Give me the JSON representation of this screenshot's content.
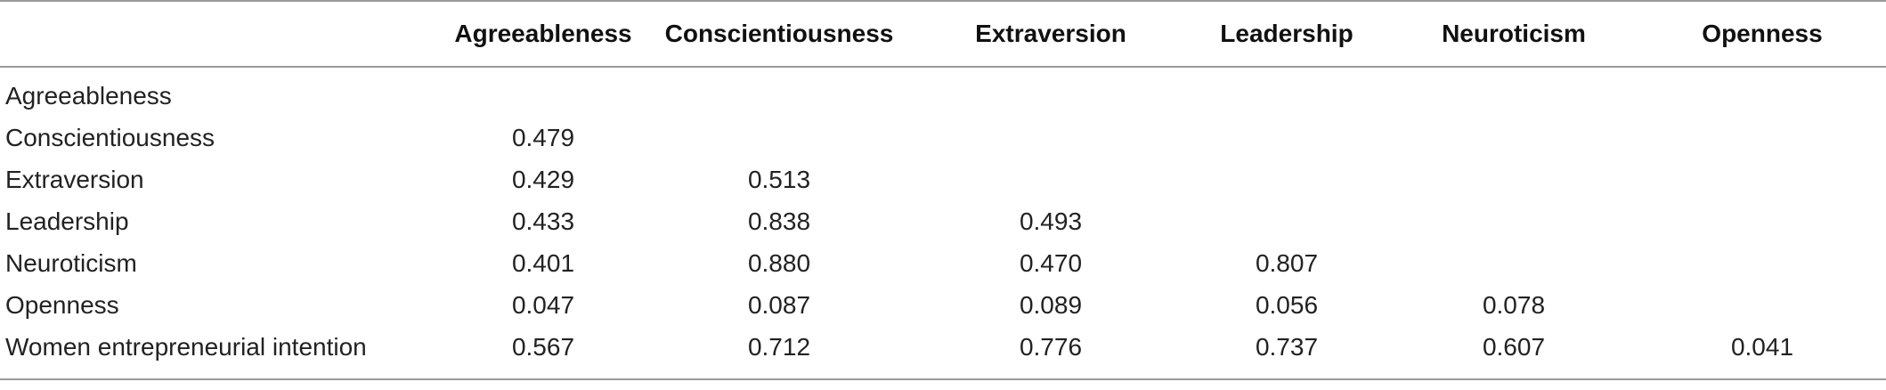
{
  "table": {
    "headers": [
      "",
      "Agreeableness",
      "Conscientiousness",
      "Extraversion",
      "Leadership",
      "Neuroticism",
      "Openness"
    ],
    "rows": [
      {
        "label": "Agreeableness",
        "values": [
          "",
          "",
          "",
          "",
          "",
          ""
        ]
      },
      {
        "label": "Conscientiousness",
        "values": [
          "0.479",
          "",
          "",
          "",
          "",
          ""
        ]
      },
      {
        "label": "Extraversion",
        "values": [
          "0.429",
          "0.513",
          "",
          "",
          "",
          ""
        ]
      },
      {
        "label": "Leadership",
        "values": [
          "0.433",
          "0.838",
          "0.493",
          "",
          "",
          ""
        ]
      },
      {
        "label": "Neuroticism",
        "values": [
          "0.401",
          "0.880",
          "0.470",
          "0.807",
          "",
          ""
        ]
      },
      {
        "label": "Openness",
        "values": [
          "0.047",
          "0.087",
          "0.089",
          "0.056",
          "0.078",
          ""
        ]
      },
      {
        "label": "Women entrepreneurial intention",
        "values": [
          "0.567",
          "0.712",
          "0.776",
          "0.737",
          "0.607",
          "0.041"
        ]
      }
    ]
  }
}
